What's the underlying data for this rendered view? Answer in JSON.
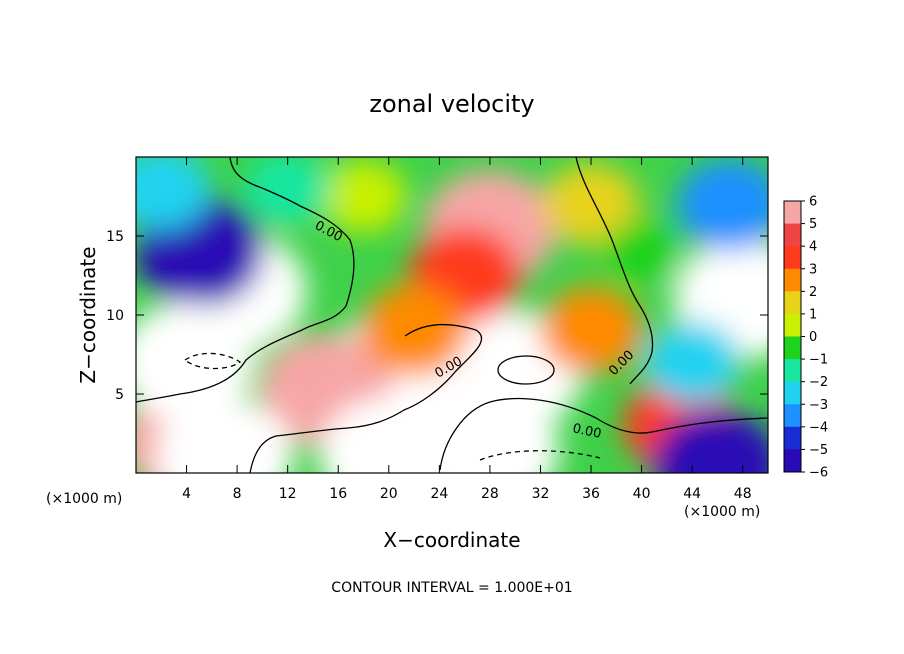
{
  "chart_data": {
    "type": "heatmap",
    "title": "zonal velocity",
    "xlabel": "X−coordinate",
    "ylabel": "Z−coordinate",
    "x_unit": "(×1000 m)",
    "z_unit": "(×1000 m)",
    "xlim": [
      0,
      50
    ],
    "ylim": [
      0,
      20
    ],
    "x_ticks": [
      4,
      8,
      12,
      16,
      20,
      24,
      28,
      32,
      36,
      40,
      44,
      48
    ],
    "y_ticks": [
      5,
      10,
      15
    ],
    "colorbar": {
      "levels": [
        6,
        5,
        4,
        3,
        2,
        1,
        0,
        -1,
        -2,
        -3,
        -4,
        -5,
        -6
      ],
      "colors": [
        "#f7a6a6",
        "#f04545",
        "#ff3a1e",
        "#ff8a00",
        "#e8d21a",
        "#c8f000",
        "#1ed21e",
        "#19e6a0",
        "#21d2f0",
        "#1e90ff",
        "#1a2cd6",
        "#2a0ab4"
      ],
      "tick_labels": [
        "6",
        "5",
        "4",
        "3",
        "2",
        "1",
        "0",
        "−1",
        "−2",
        "−3",
        "−4",
        "−5",
        "−6"
      ]
    },
    "contour_labels": [
      "0.00",
      "0.00",
      "0.00",
      "0.00"
    ],
    "footer": "CONTOUR INTERVAL = 1.000E+01",
    "features": [
      {
        "x": 28,
        "z": 15.5,
        "value": 5.5
      },
      {
        "x": 30,
        "z": 6.5,
        "value": 7.0
      },
      {
        "x": 20,
        "z": 6.2,
        "value": 6.0
      },
      {
        "x": 15,
        "z": 5.2,
        "value": 5.5
      },
      {
        "x": 4,
        "z": 2.0,
        "value": 5.5
      },
      {
        "x": 7,
        "z": 1.0,
        "value": 6.0
      },
      {
        "x": 26,
        "z": 12.5,
        "value": 3.5
      },
      {
        "x": 22,
        "z": 9.0,
        "value": 3.0
      },
      {
        "x": 36,
        "z": 9.0,
        "value": 2.5
      },
      {
        "x": 43,
        "z": 3.0,
        "value": 3.5
      },
      {
        "x": 36,
        "z": 17.0,
        "value": 2.0
      },
      {
        "x": 18,
        "z": 17.5,
        "value": 1.0
      },
      {
        "x": 40,
        "z": 14.0,
        "value": 0.0
      },
      {
        "x": 8,
        "z": 11.5,
        "value": -6.5
      },
      {
        "x": 5,
        "z": 14.0,
        "value": -5.0
      },
      {
        "x": 4,
        "z": 7.0,
        "value": -7.0
      },
      {
        "x": 28,
        "z": 1.5,
        "value": -7.0
      },
      {
        "x": 20,
        "z": 1.0,
        "value": -6.5
      },
      {
        "x": 48,
        "z": 11.0,
        "value": -6.0
      },
      {
        "x": 47,
        "z": 17.0,
        "value": -3.0
      },
      {
        "x": 44,
        "z": 7.0,
        "value": -2.0
      },
      {
        "x": 2,
        "z": 18.0,
        "value": -2.0
      },
      {
        "x": 12,
        "z": 18.0,
        "value": -1.0
      },
      {
        "x": 46,
        "z": 0.5,
        "value": -5.0
      }
    ]
  }
}
